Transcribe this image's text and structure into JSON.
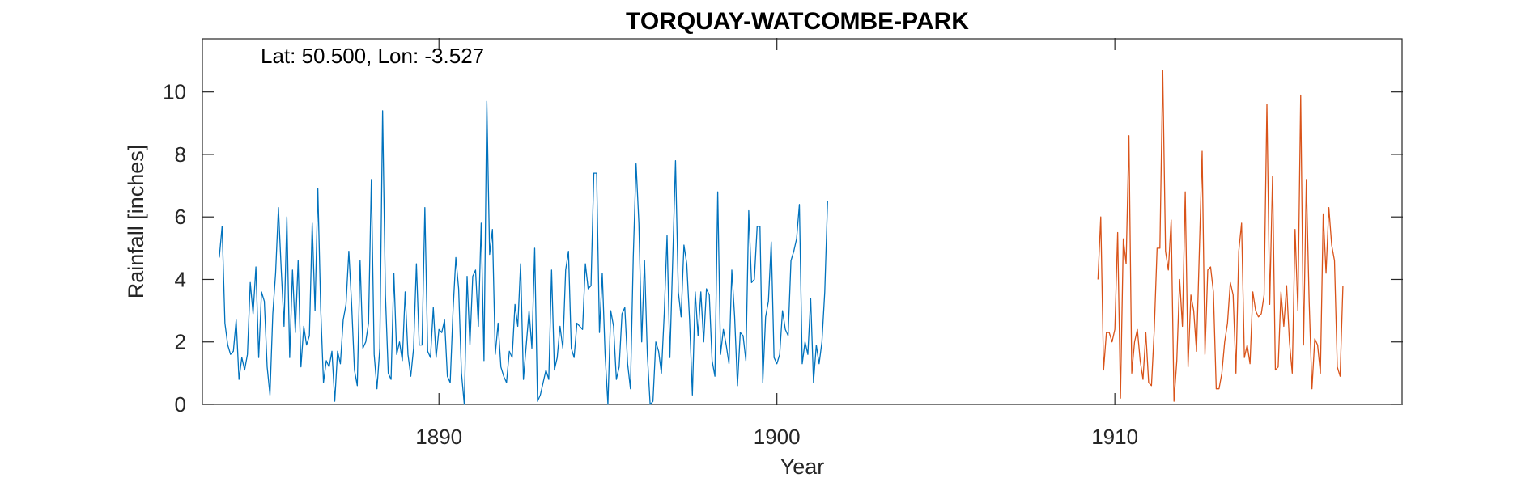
{
  "chart_data": {
    "type": "line",
    "title": "TORQUAY-WATCOMBE-PARK",
    "xlabel": "Year",
    "ylabel": "Rainfall [inches]",
    "annotation": "Lat: 50.500, Lon: -3.527",
    "xlim": [
      1883.0,
      1918.5
    ],
    "ylim": [
      0,
      11.7
    ],
    "xticks": [
      1890,
      1900,
      1910
    ],
    "xtick_labels": [
      "1890",
      "1900",
      "1910"
    ],
    "yticks": [
      0,
      2,
      4,
      6,
      8,
      10
    ],
    "ytick_labels": [
      "0",
      "2",
      "4",
      "6",
      "8",
      "10"
    ],
    "grid": false,
    "colors": {
      "series1": "#0072BD",
      "series2": "#D95319",
      "axis": "#262626"
    },
    "series": [
      {
        "x_start": 1883.5,
        "x_step": 0.08333,
        "values": [
          4.7,
          5.7,
          2.6,
          1.9,
          1.6,
          1.7,
          2.7,
          0.8,
          1.5,
          1.1,
          1.6,
          3.9,
          2.9,
          4.4,
          1.5,
          3.6,
          3.3,
          1.2,
          0.3,
          2.9,
          4.2,
          6.3,
          4.3,
          2.5,
          6.0,
          1.5,
          4.3,
          2.3,
          4.6,
          1.2,
          2.5,
          1.9,
          2.2,
          5.8,
          3.0,
          6.9,
          3.1,
          0.7,
          1.4,
          1.2,
          1.7,
          0.1,
          1.7,
          1.3,
          2.7,
          3.2,
          4.9,
          3.2,
          1.1,
          0.6,
          4.6,
          1.8,
          2.0,
          2.6,
          7.2,
          1.6,
          0.5,
          1.8,
          9.4,
          3.5,
          1.0,
          0.8,
          4.2,
          1.6,
          2.0,
          1.4,
          3.6,
          1.6,
          0.9,
          1.8,
          4.5,
          1.9,
          1.9,
          6.3,
          1.7,
          1.5,
          3.1,
          1.5,
          2.4,
          2.3,
          2.7,
          0.9,
          0.7,
          3.0,
          4.7,
          3.7,
          1.0,
          0.0,
          4.1,
          1.9,
          4.1,
          4.3,
          2.5,
          5.8,
          1.4,
          9.7,
          4.8,
          5.6,
          1.6,
          2.6,
          1.2,
          0.9,
          0.7,
          1.7,
          1.5,
          3.2,
          2.5,
          4.5,
          0.8,
          1.9,
          3.0,
          1.8,
          5.0,
          0.1,
          0.3,
          0.7,
          1.1,
          0.8,
          4.3,
          1.1,
          1.5,
          2.5,
          1.8,
          4.3,
          4.9,
          1.8,
          1.5,
          2.6,
          2.5,
          2.4,
          4.5,
          3.7,
          3.8,
          7.4,
          7.4,
          2.3,
          4.2,
          1.6,
          0.0,
          3.0,
          2.5,
          0.8,
          1.2,
          2.9,
          3.1,
          1.3,
          0.5,
          4.7,
          7.7,
          5.8,
          2.0,
          4.6,
          1.6,
          0.0,
          0.1,
          2.0,
          1.7,
          1.0,
          2.9,
          5.4,
          1.5,
          4.6,
          7.8,
          3.6,
          2.8,
          5.1,
          4.5,
          2.7,
          0.3,
          3.6,
          2.2,
          3.6,
          2.0,
          3.7,
          3.5,
          1.4,
          0.9,
          6.8,
          1.6,
          2.4,
          1.9,
          1.3,
          4.3,
          2.8,
          0.6,
          2.3,
          2.2,
          1.4,
          6.2,
          3.9,
          4.0,
          5.7,
          5.7,
          0.7,
          2.8,
          3.3,
          5.2,
          1.5,
          1.3,
          1.6,
          3.0,
          2.4,
          2.2,
          4.6,
          4.9,
          5.3,
          6.4,
          1.3,
          2.0,
          1.6,
          3.4,
          0.7,
          1.9,
          1.3,
          2.0,
          3.6,
          6.5
        ]
      },
      {
        "x_start": 1909.5,
        "x_step": 0.08333,
        "values": [
          4.0,
          6.0,
          1.1,
          2.3,
          2.3,
          2.0,
          2.4,
          5.5,
          0.2,
          5.3,
          4.5,
          8.6,
          1.0,
          2.0,
          2.4,
          1.4,
          0.8,
          2.3,
          0.7,
          0.6,
          2.4,
          5.0,
          5.0,
          10.7,
          4.9,
          4.3,
          5.9,
          0.1,
          1.4,
          4.0,
          2.5,
          6.8,
          1.2,
          3.5,
          3.0,
          1.7,
          4.9,
          8.1,
          1.6,
          4.3,
          4.4,
          3.6,
          0.5,
          0.5,
          1.0,
          2.0,
          2.6,
          3.9,
          3.5,
          1.0,
          4.9,
          5.8,
          1.5,
          1.9,
          1.3,
          3.6,
          3.0,
          2.8,
          2.9,
          3.5,
          9.6,
          3.2,
          7.3,
          1.1,
          1.2,
          3.6,
          2.5,
          3.8,
          2.0,
          1.0,
          5.6,
          3.0,
          9.9,
          1.9,
          7.2,
          3.3,
          0.5,
          2.1,
          1.9,
          1.0,
          6.1,
          4.2,
          6.3,
          5.1,
          4.6,
          1.2,
          0.9,
          3.8
        ]
      }
    ]
  }
}
